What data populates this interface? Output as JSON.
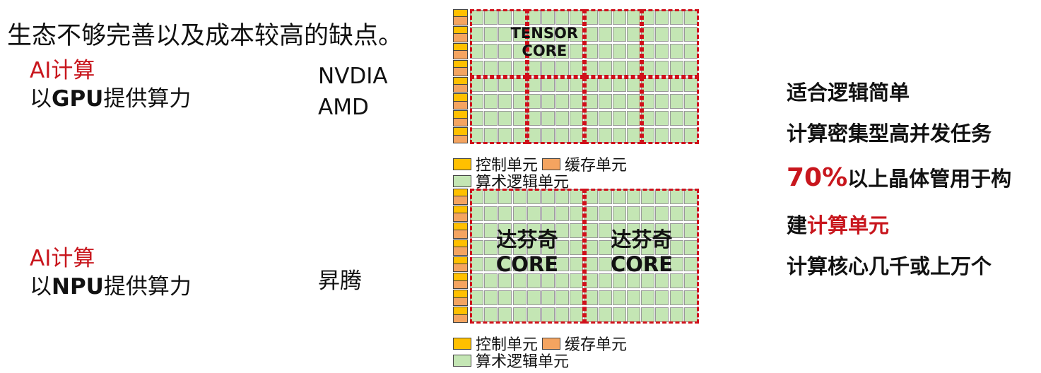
{
  "slide": {
    "top_text": "生态不够完善以及成本较高的缺点。",
    "gpu_section": {
      "label_red": "AI计算",
      "label_prefix": "以",
      "label_bold": "GPU",
      "label_suffix": "提供算力",
      "vendors": [
        "NVDIA",
        "AMD"
      ]
    },
    "npu_section": {
      "label_red": "AI计算",
      "label_prefix": "以",
      "label_bold": "NPU",
      "label_suffix": "提供算力",
      "vendors": [
        "昇腾"
      ]
    },
    "gpu_diagram": {
      "core_label": [
        "TENSOR",
        "CORE"
      ],
      "rows": 8,
      "cols": 16,
      "core_cols": 4,
      "core_rows": 2
    },
    "npu_diagram": {
      "core_label": [
        "达芬奇",
        "CORE"
      ],
      "rows": 8,
      "cols": 16,
      "core_cols": 2,
      "core_rows": 1
    },
    "legend": {
      "control": "控制单元",
      "cache": "缓存单元",
      "alu": "算术逻辑单元"
    },
    "right_text": {
      "line1": "适合逻辑简单",
      "line2": "计算密集型高并发任务",
      "line3_red": "70%",
      "line3": "以上晶体管用于构",
      "line4": "建",
      "line4_red": "计算单元",
      "line5": "计算核心几千或上万个"
    },
    "colors": {
      "accent_red": "#c8161d",
      "control": "#ffc000",
      "cache": "#f4a460",
      "alu": "#c4e6b4",
      "core_border": "#d0101a"
    }
  }
}
